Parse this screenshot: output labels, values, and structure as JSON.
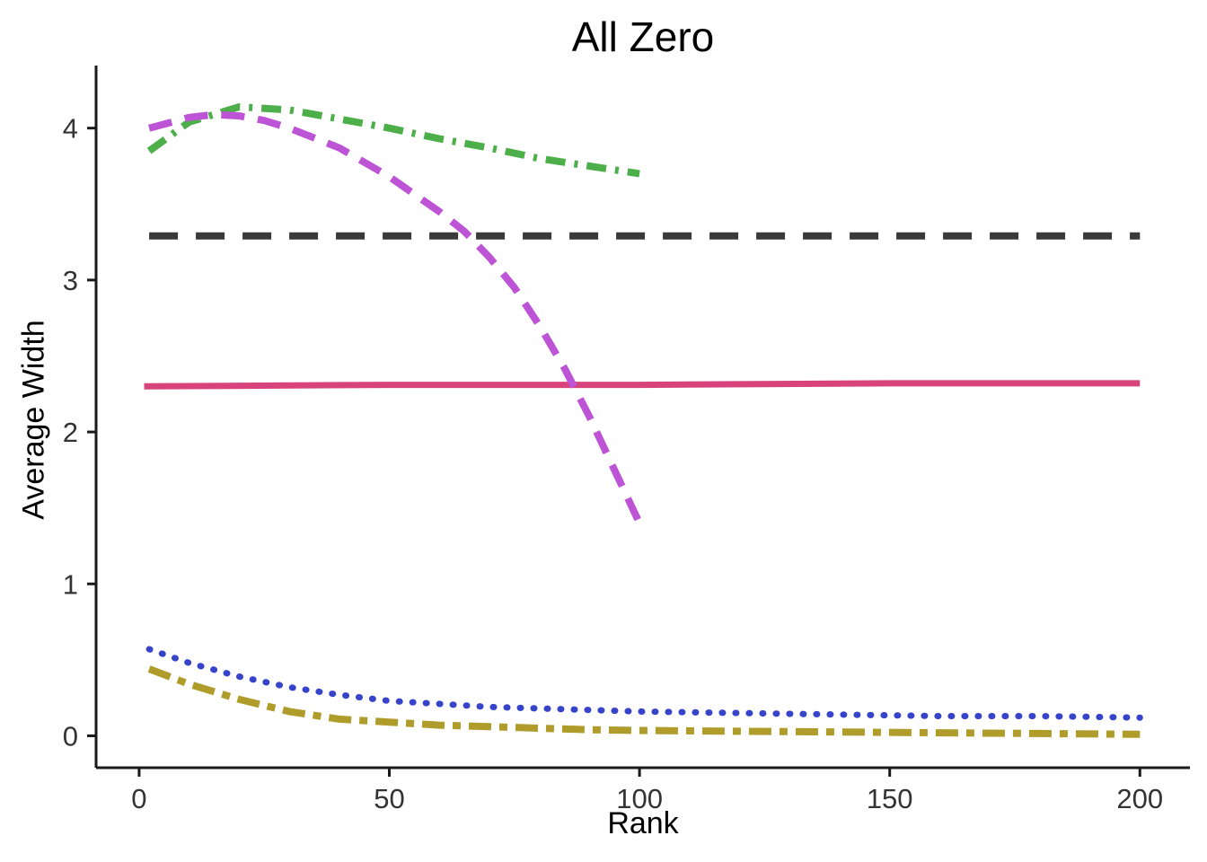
{
  "chart_data": {
    "type": "line",
    "title": "All Zero",
    "xlabel": "Rank",
    "ylabel": "Average Width",
    "xlim": [
      -8.6,
      210
    ],
    "ylim": [
      -0.21,
      4.4
    ],
    "x_ticks": [
      0,
      50,
      100,
      150,
      200
    ],
    "y_ticks": [
      0,
      1,
      2,
      3,
      4
    ],
    "grid": false,
    "legend": "none",
    "axis_color": "#1a1a1a",
    "tick_label_color": "#333333",
    "series": [
      {
        "name": "black-longdash",
        "color": "#3a3a3a",
        "width": 8,
        "dash": [
          32,
          20
        ],
        "linecap": "butt",
        "x": [
          2,
          200
        ],
        "y": [
          3.29,
          3.29
        ]
      },
      {
        "name": "pink-solid",
        "color": "#d8437c",
        "width": 7,
        "dash": null,
        "linecap": "butt",
        "x": [
          1,
          50,
          100,
          150,
          200
        ],
        "y": [
          2.3,
          2.31,
          2.31,
          2.32,
          2.32
        ]
      },
      {
        "name": "green-dotdash",
        "color": "#4daf4a",
        "width": 8,
        "dash": [
          22,
          10,
          4,
          10
        ],
        "linecap": "butt",
        "x": [
          2,
          10,
          20,
          30,
          40,
          50,
          60,
          70,
          80,
          90,
          100
        ],
        "y": [
          3.85,
          4.04,
          4.14,
          4.12,
          4.06,
          4.0,
          3.93,
          3.87,
          3.8,
          3.75,
          3.7
        ]
      },
      {
        "name": "purple-dashed",
        "color": "#bd54d6",
        "width": 8,
        "dash": [
          26,
          15
        ],
        "linecap": "butt",
        "x": [
          2,
          10,
          15,
          20,
          25,
          30,
          40,
          50,
          60,
          65,
          70,
          75,
          80,
          85,
          90,
          95,
          100
        ],
        "y": [
          4.0,
          4.07,
          4.09,
          4.08,
          4.05,
          4.0,
          3.87,
          3.68,
          3.45,
          3.32,
          3.15,
          2.95,
          2.7,
          2.42,
          2.1,
          1.75,
          1.4
        ]
      },
      {
        "name": "blue-dotted",
        "color": "#3744c9",
        "width": 7,
        "dash": [
          1,
          14
        ],
        "linecap": "round",
        "x": [
          2,
          10,
          20,
          30,
          40,
          50,
          60,
          70,
          80,
          90,
          100,
          120,
          140,
          160,
          180,
          200
        ],
        "y": [
          0.57,
          0.48,
          0.39,
          0.32,
          0.27,
          0.23,
          0.21,
          0.19,
          0.18,
          0.17,
          0.16,
          0.15,
          0.14,
          0.13,
          0.13,
          0.12
        ]
      },
      {
        "name": "olive-twodash",
        "color": "#b09c2a",
        "width": 8,
        "dash": [
          25,
          9,
          9,
          9
        ],
        "linecap": "butt",
        "x": [
          2,
          10,
          20,
          30,
          40,
          50,
          60,
          70,
          80,
          90,
          100,
          120,
          140,
          160,
          180,
          200
        ],
        "y": [
          0.44,
          0.34,
          0.24,
          0.16,
          0.11,
          0.09,
          0.07,
          0.06,
          0.05,
          0.04,
          0.035,
          0.03,
          0.025,
          0.02,
          0.015,
          0.01
        ]
      }
    ]
  }
}
